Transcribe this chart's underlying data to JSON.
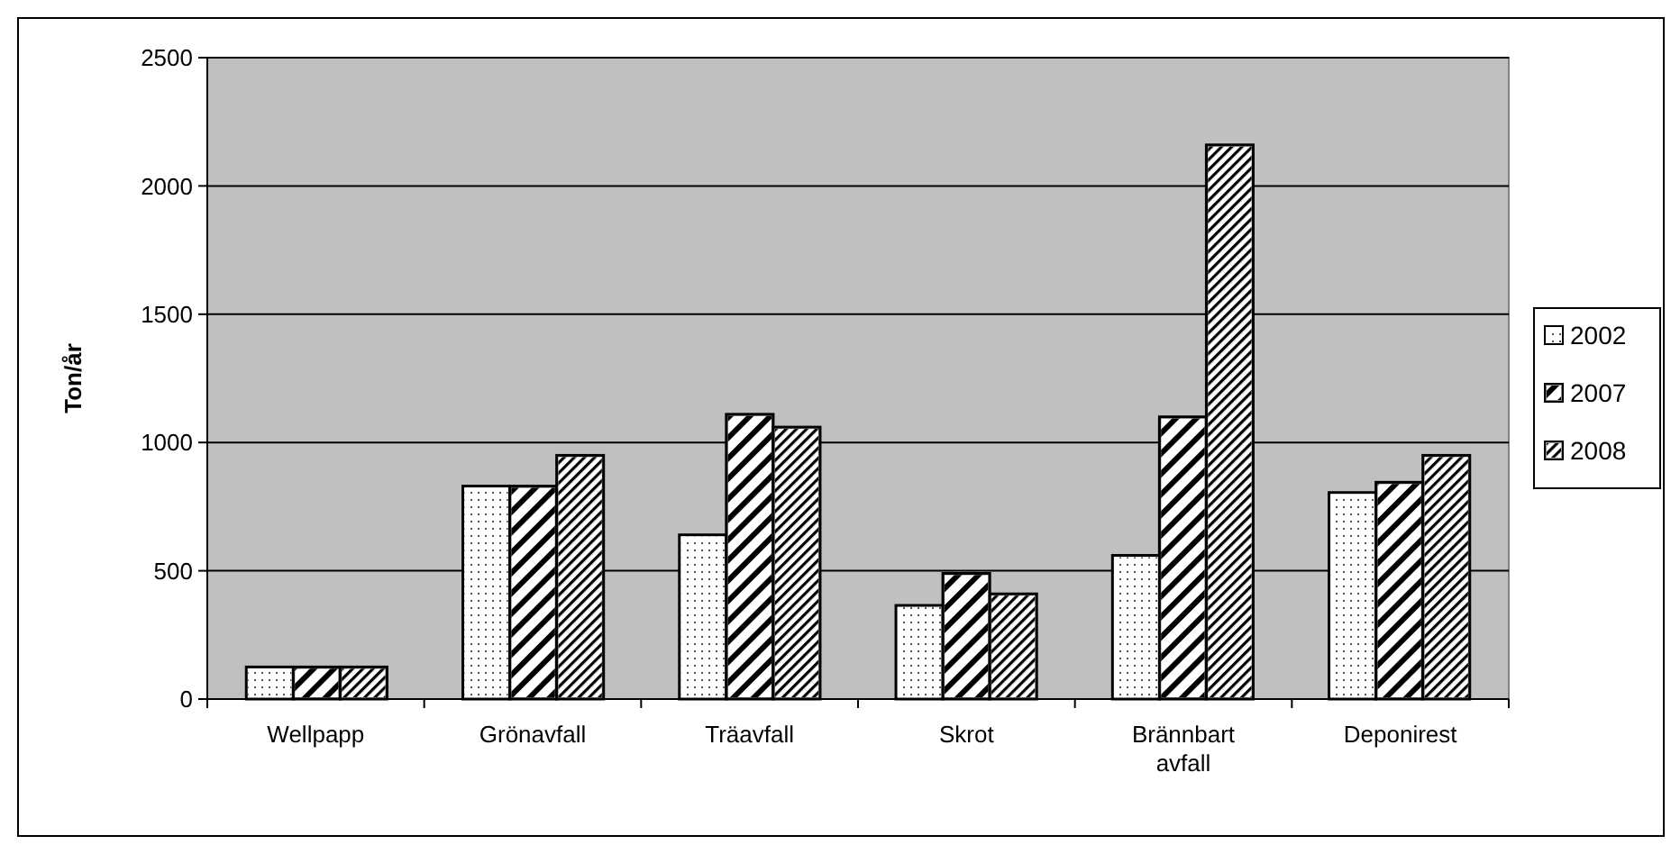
{
  "chart_data": {
    "type": "bar",
    "ylabel": "Ton/år",
    "categories": [
      "Wellpapp",
      "Grönavfall",
      "Träavfall",
      "Skrot",
      "Brännbart avfall",
      "Deponirest"
    ],
    "series": [
      {
        "name": "2002",
        "color": "#ffffff",
        "values": [
          125,
          830,
          640,
          365,
          560,
          805
        ]
      },
      {
        "name": "2007",
        "color": "#808080",
        "values": [
          125,
          830,
          1110,
          490,
          1100,
          845
        ]
      },
      {
        "name": "2008",
        "color": "#a0a0a0",
        "values": [
          125,
          950,
          1060,
          410,
          2160,
          950
        ]
      }
    ],
    "ylim": [
      0,
      2500
    ],
    "yticks": [
      0,
      500,
      1000,
      1500,
      2000,
      2500
    ],
    "grid": "y",
    "legend": "right"
  }
}
